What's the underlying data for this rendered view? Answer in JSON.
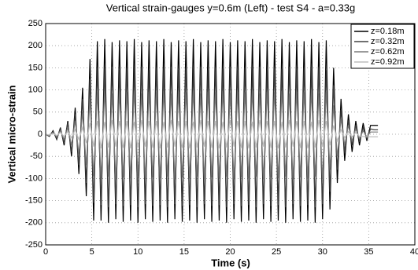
{
  "chart_data": {
    "type": "line",
    "title": "Vertical strain-gauges y=0.6m (Left) - test S4 - a=0.33g",
    "x_label": "Time (s)",
    "y_label": "Vertical micro-strain",
    "x": [
      0,
      0.4,
      0.8,
      1.2,
      1.6,
      2,
      2.4,
      2.8,
      3.2,
      3.6,
      4,
      4.4,
      4.8,
      5.2,
      5.6,
      6,
      6.4,
      6.8,
      7.2,
      7.6,
      8,
      8.4,
      8.8,
      9.2,
      9.6,
      10,
      10.4,
      10.8,
      11.2,
      11.6,
      12,
      12.4,
      12.8,
      13.2,
      13.6,
      14,
      14.4,
      14.8,
      15.2,
      15.6,
      16,
      16.4,
      16.8,
      17.2,
      17.6,
      18,
      18.4,
      18.8,
      19.2,
      19.6,
      20,
      20.4,
      20.8,
      21.2,
      21.6,
      22,
      22.4,
      22.8,
      23.2,
      23.6,
      24,
      24.4,
      24.8,
      25.2,
      25.6,
      26,
      26.4,
      26.8,
      27.2,
      27.6,
      28,
      28.4,
      28.8,
      29.2,
      29.6,
      30,
      30.4,
      30.8,
      31.2,
      31.6,
      32,
      32.4,
      32.8,
      33.2,
      33.6,
      34,
      34.4,
      34.8,
      35.2,
      35.6,
      36
    ],
    "series": [
      {
        "name": "z=0.18m",
        "color": "#000000",
        "values": [
          0,
          -5,
          8,
          -12,
          15,
          -25,
          30,
          -50,
          60,
          -90,
          105,
          -140,
          170,
          -195,
          210,
          -195,
          215,
          -200,
          208,
          -192,
          212,
          -198,
          210,
          -195,
          215,
          -200,
          208,
          -192,
          212,
          -198,
          210,
          -195,
          215,
          -200,
          208,
          -192,
          212,
          -198,
          210,
          -195,
          215,
          -200,
          208,
          -192,
          212,
          -198,
          210,
          -195,
          215,
          -200,
          208,
          -192,
          212,
          -198,
          210,
          -195,
          215,
          -200,
          208,
          -192,
          212,
          -198,
          210,
          -195,
          215,
          -200,
          208,
          -192,
          212,
          -198,
          210,
          -195,
          215,
          -200,
          208,
          -192,
          212,
          -170,
          150,
          -110,
          80,
          -60,
          45,
          -40,
          30,
          -25,
          25,
          -15,
          20,
          20,
          20
        ]
      },
      {
        "name": "z=0.32m",
        "color": "#404040",
        "values": [
          0,
          -4,
          6,
          -10,
          12,
          -20,
          25,
          -40,
          45,
          -70,
          80,
          -110,
          125,
          -155,
          150,
          -160,
          148,
          -165,
          152,
          -158,
          145,
          -162,
          150,
          -160,
          148,
          -165,
          152,
          -158,
          145,
          -162,
          150,
          -160,
          148,
          -165,
          152,
          -158,
          145,
          -162,
          150,
          -160,
          148,
          -165,
          152,
          -158,
          145,
          -162,
          150,
          -160,
          148,
          -165,
          152,
          -158,
          145,
          -162,
          150,
          -160,
          148,
          -165,
          152,
          -158,
          145,
          -162,
          150,
          -160,
          148,
          -165,
          152,
          -158,
          145,
          -162,
          150,
          -160,
          148,
          -165,
          152,
          -158,
          145,
          -130,
          110,
          -80,
          55,
          -40,
          30,
          -25,
          20,
          -15,
          15,
          -10,
          12,
          10,
          10
        ]
      },
      {
        "name": "z=0.62m",
        "color": "#7a7a7a",
        "values": [
          0,
          -3,
          4,
          -6,
          8,
          -12,
          15,
          -25,
          30,
          -45,
          50,
          -70,
          80,
          -95,
          95,
          -100,
          98,
          -96,
          92,
          -102,
          96,
          -98,
          95,
          -100,
          98,
          -96,
          92,
          -102,
          96,
          -98,
          95,
          -100,
          98,
          -96,
          92,
          -102,
          96,
          -98,
          95,
          -100,
          98,
          -96,
          92,
          -102,
          96,
          -98,
          95,
          -100,
          98,
          -96,
          92,
          -102,
          96,
          -98,
          95,
          -100,
          98,
          -96,
          92,
          -102,
          96,
          -98,
          95,
          -100,
          98,
          -96,
          92,
          -102,
          96,
          -98,
          95,
          -100,
          98,
          -96,
          92,
          -102,
          96,
          -80,
          65,
          -50,
          35,
          -25,
          20,
          -15,
          12,
          -10,
          8,
          -6,
          5,
          5,
          5
        ]
      },
      {
        "name": "z=0.92m",
        "color": "#bdbdbd",
        "values": [
          0,
          -2,
          2,
          -3,
          4,
          -5,
          6,
          -8,
          10,
          -12,
          15,
          -20,
          25,
          -28,
          30,
          -32,
          28,
          -30,
          32,
          -28,
          30,
          -31,
          30,
          -32,
          28,
          -30,
          32,
          -28,
          30,
          -31,
          30,
          -32,
          28,
          -30,
          32,
          -28,
          30,
          -31,
          30,
          -32,
          28,
          -30,
          32,
          -28,
          30,
          -31,
          30,
          -32,
          28,
          -30,
          32,
          -28,
          30,
          -31,
          30,
          -32,
          28,
          -30,
          32,
          -28,
          30,
          -31,
          30,
          -32,
          28,
          -30,
          32,
          -28,
          30,
          -31,
          30,
          -32,
          28,
          -30,
          32,
          -28,
          30,
          -25,
          20,
          -15,
          10,
          -8,
          6,
          -6,
          4,
          -5,
          -5,
          -6,
          -6,
          -6,
          -6
        ]
      }
    ],
    "xlim": [
      0,
      40
    ],
    "xticks": [
      0,
      5,
      10,
      15,
      20,
      25,
      30,
      35,
      40
    ],
    "ylim": [
      -250,
      250
    ],
    "yticks": [
      -250,
      -200,
      -150,
      -100,
      -50,
      0,
      50,
      100,
      150,
      200,
      250
    ],
    "grid": true,
    "legend": "top-right"
  }
}
